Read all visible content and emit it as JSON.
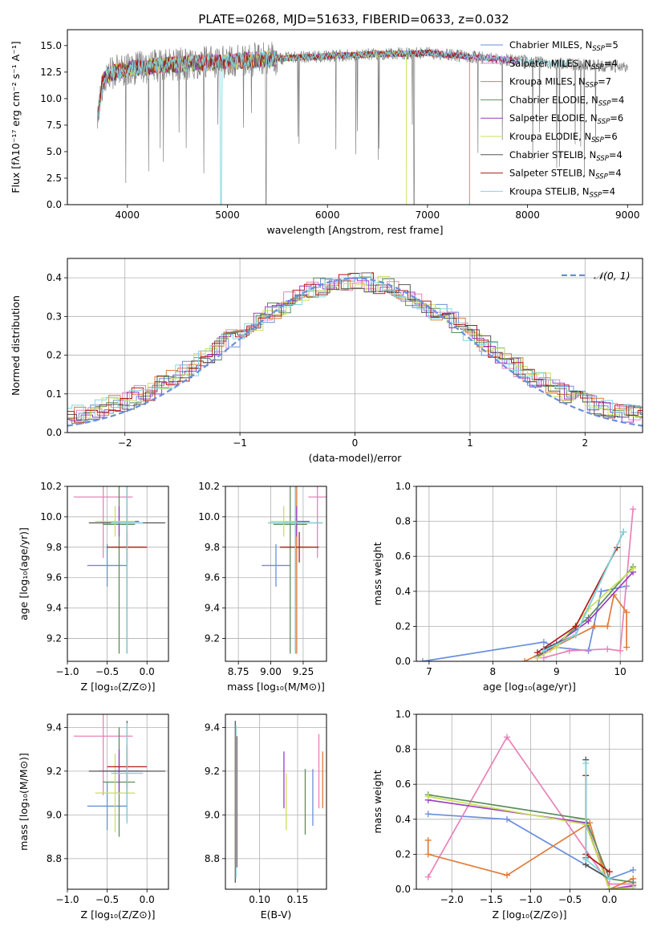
{
  "figure": {
    "title": "PLATE=0268, MJD=51633, FIBERID=0633, z=0.032"
  },
  "colors": {
    "chabrier_miles": "#6a8fdb",
    "salpeter_miles": "#e783b9",
    "kroupa_miles": "#e07b39",
    "chabrier_elodie": "#5b8e5b",
    "salpeter_elodie": "#9b3bc4",
    "kroupa_elodie": "#c9e05a",
    "chabrier_stelib": "#555555",
    "salpeter_stelib": "#b01b1b",
    "kroupa_stelib": "#7fd7df",
    "normal_curve": "#6a8fdb"
  },
  "chart_data": [
    {
      "id": "spectrum",
      "type": "line",
      "xlabel": "wavelength [Angstrom, rest frame]",
      "ylabel": "Flux [fλ10⁻¹⁷ erg cm⁻² s⁻¹ A⁻¹]",
      "xlim": [
        3400,
        9150
      ],
      "ylim": [
        0,
        16.5
      ],
      "xticks": [
        "4000",
        "5000",
        "6000",
        "7000",
        "8000",
        "9000"
      ],
      "yticks": [
        "0.0",
        "2.5",
        "5.0",
        "7.5",
        "10.0",
        "12.5",
        "15.0"
      ],
      "legend_position": "top-right",
      "series": [
        {
          "key": "chabrier_miles",
          "name": "Chabrier MILES, N_SSP=5",
          "label_main": "Chabrier MILES, N",
          "label_sub": "SSP",
          "label_tail": "=5"
        },
        {
          "key": "salpeter_miles",
          "name": "Salpeter MILES, N_SSP=4",
          "label_main": "Salpeter MILES, N",
          "label_sub": "SSP",
          "label_tail": "=4"
        },
        {
          "key": "kroupa_miles",
          "name": "Kroupa MILES, N_SSP=7",
          "label_main": "Kroupa MILES, N",
          "label_sub": "SSP",
          "label_tail": "=7"
        },
        {
          "key": "chabrier_elodie",
          "name": "Chabrier ELODIE, N_SSP=4",
          "label_main": "Chabrier ELODIE, N",
          "label_sub": "SSP",
          "label_tail": "=4"
        },
        {
          "key": "salpeter_elodie",
          "name": "Salpeter ELODIE, N_SSP=6",
          "label_main": "Salpeter ELODIE, N",
          "label_sub": "SSP",
          "label_tail": "=6"
        },
        {
          "key": "kroupa_elodie",
          "name": "Kroupa ELODIE, N_SSP=6",
          "label_main": "Kroupa ELODIE, N",
          "label_sub": "SSP",
          "label_tail": "=6"
        },
        {
          "key": "chabrier_stelib",
          "name": "Chabrier STELIB, N_SSP=4",
          "label_main": "Chabrier STELIB, N",
          "label_sub": "SSP",
          "label_tail": "=4"
        },
        {
          "key": "salpeter_stelib",
          "name": "Salpeter STELIB, N_SSP=4",
          "label_main": "Salpeter STELIB, N",
          "label_sub": "SSP",
          "label_tail": "=4"
        },
        {
          "key": "kroupa_stelib",
          "name": "Kroupa STELIB, N_SSP=4",
          "label_main": "Kroupa STELIB, N",
          "label_sub": "SSP",
          "label_tail": "=4"
        }
      ],
      "continuum": [
        [
          3700,
          8.0
        ],
        [
          3750,
          11.5
        ],
        [
          3800,
          12.2
        ],
        [
          3900,
          12.6
        ],
        [
          4000,
          12.8
        ],
        [
          4300,
          13.1
        ],
        [
          4600,
          13.3
        ],
        [
          5000,
          13.5
        ],
        [
          5500,
          13.8
        ],
        [
          6000,
          14.0
        ],
        [
          6500,
          14.2
        ],
        [
          7000,
          14.3
        ],
        [
          7500,
          13.9
        ],
        [
          8000,
          13.5
        ],
        [
          8500,
          13.2
        ],
        [
          9000,
          13.0
        ]
      ],
      "model_start": 3700,
      "data_end": 9000
    },
    {
      "id": "residuals",
      "type": "histogram",
      "xlabel": "(data-model)/error",
      "ylabel": "Normed distribution",
      "xlim": [
        -2.5,
        2.5
      ],
      "ylim": [
        0,
        0.45
      ],
      "xticks": [
        "-2",
        "-1",
        "0",
        "1",
        "2"
      ],
      "yticks": [
        "0.0",
        "0.1",
        "0.2",
        "0.3",
        "0.4"
      ],
      "grid": true,
      "bin_width": 0.1,
      "curve_label": "𝒩(0, 1)",
      "legend_position": "top-right"
    },
    {
      "id": "age_vs_Z",
      "type": "scatter",
      "xlabel": "Z [log₁₀(Z/Z⊙)]",
      "ylabel": "age  [log₁₀(age/yr)]",
      "xlim": [
        -1.0,
        0.27
      ],
      "ylim": [
        9.05,
        10.2
      ],
      "xticks": [
        "-1.0",
        "-0.5",
        "0.0"
      ],
      "yticks": [
        "9.2",
        "9.4",
        "9.6",
        "9.8",
        "10.0",
        "10.2"
      ],
      "grid": true,
      "points": [
        {
          "key": "chabrier_miles",
          "x": -0.5,
          "xerr": 0.25,
          "y": 9.68,
          "yerr": 0.14
        },
        {
          "key": "salpeter_miles",
          "x": -0.55,
          "xerr": 0.37,
          "y": 10.13,
          "yerr": 0.4
        },
        {
          "key": "kroupa_miles",
          "x": -0.25,
          "xerr": 0.2,
          "y": 9.8,
          "yerr": 0.7
        },
        {
          "key": "chabrier_elodie",
          "x": -0.35,
          "xerr": 0.2,
          "y": 9.95,
          "yerr": 0.85
        },
        {
          "key": "salpeter_elodie",
          "x": -0.35,
          "xerr": 0.25,
          "y": 9.97,
          "yerr": 0.1
        },
        {
          "key": "kroupa_elodie",
          "x": -0.4,
          "xerr": 0.25,
          "y": 9.97,
          "yerr": 0.1
        },
        {
          "key": "chabrier_stelib",
          "x": -0.25,
          "xerr": 0.48,
          "y": 9.96,
          "yerr": 0.86
        },
        {
          "key": "salpeter_stelib",
          "x": -0.25,
          "xerr": 0.25,
          "y": 9.8,
          "yerr": 0.1
        },
        {
          "key": "kroupa_stelib",
          "x": -0.25,
          "xerr": 0.2,
          "y": 9.96,
          "yerr": 0.86
        }
      ]
    },
    {
      "id": "age_vs_mass",
      "type": "scatter",
      "xlabel": "mass [log₁₀(M/M⊙)]",
      "ylabel": "",
      "xlim": [
        8.65,
        9.43
      ],
      "ylim": [
        9.05,
        10.2
      ],
      "xticks": [
        "8.75",
        "9.00",
        "9.25"
      ],
      "yticks": [
        "9.2",
        "9.4",
        "9.6",
        "9.8",
        "10.0",
        "10.2"
      ],
      "grid": true,
      "points": [
        {
          "key": "chabrier_miles",
          "x": 9.04,
          "xerr": 0.11,
          "y": 9.68,
          "yerr": 0.14
        },
        {
          "key": "salpeter_miles",
          "x": 9.36,
          "xerr": 0.07,
          "y": 10.13,
          "yerr": 0.4
        },
        {
          "key": "kroupa_miles",
          "x": 9.2,
          "xerr": 0.1,
          "y": 9.8,
          "yerr": 0.7
        },
        {
          "key": "chabrier_elodie",
          "x": 9.15,
          "xerr": 0.13,
          "y": 9.95,
          "yerr": 0.85
        },
        {
          "key": "salpeter_elodie",
          "x": 9.2,
          "xerr": 0.1,
          "y": 9.97,
          "yerr": 0.1
        },
        {
          "key": "kroupa_elodie",
          "x": 9.1,
          "xerr": 0.1,
          "y": 9.97,
          "yerr": 0.1
        },
        {
          "key": "chabrier_stelib",
          "x": 9.19,
          "xerr": 0.21,
          "y": 9.96,
          "yerr": 0.86
        },
        {
          "key": "salpeter_stelib",
          "x": 9.22,
          "xerr": 0.15,
          "y": 9.8,
          "yerr": 0.1
        },
        {
          "key": "kroupa_stelib",
          "x": 9.19,
          "xerr": 0.21,
          "y": 9.96,
          "yerr": 0.86
        }
      ]
    },
    {
      "id": "weight_vs_age",
      "type": "line",
      "xlabel": "age  [log₁₀(age/yr)]",
      "ylabel": "mass weight",
      "xlim": [
        6.8,
        10.35
      ],
      "ylim": [
        0,
        1.0
      ],
      "xticks": [
        "7",
        "8",
        "9",
        "10"
      ],
      "yticks": [
        "0.0",
        "0.2",
        "0.4",
        "0.6",
        "0.8",
        "1.0"
      ],
      "grid": true,
      "series": [
        {
          "key": "chabrier_miles",
          "points": [
            [
              6.9,
              0.0
            ],
            [
              8.8,
              0.11
            ],
            [
              9.0,
              0.08
            ],
            [
              9.5,
              0.06
            ],
            [
              9.7,
              0.4
            ],
            [
              10.1,
              0.43
            ]
          ]
        },
        {
          "key": "salpeter_miles",
          "points": [
            [
              8.8,
              0.02
            ],
            [
              9.2,
              0.06
            ],
            [
              9.8,
              0.07
            ],
            [
              10.0,
              0.06
            ],
            [
              10.2,
              0.87
            ]
          ]
        },
        {
          "key": "kroupa_miles",
          "points": [
            [
              8.5,
              0.0
            ],
            [
              8.9,
              0.07
            ],
            [
              9.6,
              0.2
            ],
            [
              9.8,
              0.2
            ],
            [
              9.9,
              0.38
            ],
            [
              10.1,
              0.28
            ],
            [
              10.1,
              0.08
            ]
          ]
        },
        {
          "key": "chabrier_elodie",
          "points": [
            [
              8.7,
              0.03
            ],
            [
              9.0,
              0.1
            ],
            [
              9.5,
              0.25
            ],
            [
              10.2,
              0.54
            ]
          ]
        },
        {
          "key": "salpeter_elodie",
          "points": [
            [
              8.7,
              0.02
            ],
            [
              9.0,
              0.1
            ],
            [
              9.5,
              0.23
            ],
            [
              10.2,
              0.51
            ]
          ]
        },
        {
          "key": "kroupa_elodie",
          "points": [
            [
              8.7,
              0.02
            ],
            [
              9.0,
              0.08
            ],
            [
              9.5,
              0.3
            ],
            [
              10.2,
              0.53
            ]
          ]
        },
        {
          "key": "chabrier_stelib",
          "points": [
            [
              8.8,
              0.07
            ],
            [
              9.3,
              0.15
            ],
            [
              10.05,
              0.74
            ]
          ]
        },
        {
          "key": "salpeter_stelib",
          "points": [
            [
              8.7,
              0.05
            ],
            [
              9.3,
              0.2
            ],
            [
              9.95,
              0.65
            ]
          ]
        },
        {
          "key": "kroupa_stelib",
          "points": [
            [
              8.8,
              0.06
            ],
            [
              9.3,
              0.15
            ],
            [
              10.05,
              0.74
            ]
          ]
        }
      ]
    },
    {
      "id": "mass_vs_Z",
      "type": "scatter",
      "xlabel": "Z [log₁₀(Z/Z⊙)]",
      "ylabel": "mass [log₁₀(M/M⊙)]",
      "xlim": [
        -1.0,
        0.27
      ],
      "ylim": [
        8.66,
        9.46
      ],
      "xticks": [
        "-1.0",
        "-0.5",
        "0.0"
      ],
      "yticks": [
        "8.8",
        "9.0",
        "9.2",
        "9.4"
      ],
      "grid": true,
      "points": [
        {
          "key": "chabrier_miles",
          "x": -0.5,
          "xerr": 0.25,
          "y": 9.04,
          "yerr": 0.11
        },
        {
          "key": "salpeter_miles",
          "x": -0.55,
          "xerr": 0.37,
          "y": 9.36,
          "yerr": 0.27
        },
        {
          "key": "kroupa_miles",
          "x": -0.25,
          "xerr": 0.2,
          "y": 9.2,
          "yerr": 0.1
        },
        {
          "key": "chabrier_elodie",
          "x": -0.35,
          "xerr": 0.2,
          "y": 9.15,
          "yerr": 0.25
        },
        {
          "key": "salpeter_elodie",
          "x": -0.35,
          "xerr": 0.25,
          "y": 9.2,
          "yerr": 0.1
        },
        {
          "key": "kroupa_elodie",
          "x": -0.4,
          "xerr": 0.25,
          "y": 9.1,
          "yerr": 0.18
        },
        {
          "key": "chabrier_stelib",
          "x": -0.25,
          "xerr": 0.48,
          "y": 9.2,
          "yerr": 0.23
        },
        {
          "key": "salpeter_stelib",
          "x": -0.25,
          "xerr": 0.25,
          "y": 9.22,
          "yerr": 0.1
        },
        {
          "key": "kroupa_stelib",
          "x": -0.25,
          "xerr": 0.2,
          "y": 9.19,
          "yerr": 0.23
        }
      ]
    },
    {
      "id": "mass_vs_ebv",
      "type": "scatter",
      "xlabel": "E(B-V)",
      "ylabel": "",
      "xlim": [
        0.055,
        0.188
      ],
      "ylim": [
        8.66,
        9.46
      ],
      "xticks": [
        "0.10",
        "0.15"
      ],
      "yticks": [
        "8.8",
        "9.0",
        "9.2",
        "9.4"
      ],
      "grid": true,
      "points": [
        {
          "key": "chabrier_miles",
          "x": 0.17,
          "xerr": 0,
          "y": 9.08,
          "yerr": 0.13
        },
        {
          "key": "salpeter_miles",
          "x": 0.178,
          "xerr": 0,
          "y": 9.2,
          "yerr": 0.17
        },
        {
          "key": "kroupa_miles",
          "x": 0.183,
          "xerr": 0,
          "y": 9.16,
          "yerr": 0.13
        },
        {
          "key": "chabrier_elodie",
          "x": 0.16,
          "xerr": 0,
          "y": 9.06,
          "yerr": 0.15
        },
        {
          "key": "salpeter_elodie",
          "x": 0.132,
          "xerr": 0,
          "y": 9.16,
          "yerr": 0.13
        },
        {
          "key": "kroupa_elodie",
          "x": 0.135,
          "xerr": 0,
          "y": 9.06,
          "yerr": 0.13
        },
        {
          "key": "chabrier_stelib",
          "x": 0.068,
          "xerr": 0,
          "y": 9.06,
          "yerr": 0.37
        },
        {
          "key": "salpeter_stelib",
          "x": 0.07,
          "xerr": 0,
          "y": 9.06,
          "yerr": 0.3
        },
        {
          "key": "kroupa_stelib",
          "x": 0.069,
          "xerr": 0,
          "y": 9.06,
          "yerr": 0.35
        }
      ]
    },
    {
      "id": "weight_vs_Z",
      "type": "line",
      "xlabel": "Z [log₁₀(Z/Z⊙)]",
      "ylabel": "mass weight",
      "xlim": [
        -2.45,
        0.42
      ],
      "ylim": [
        0,
        1.0
      ],
      "xticks": [
        "-2.0",
        "-1.5",
        "-1.0",
        "-0.5",
        "0.0"
      ],
      "yticks": [
        "0.0",
        "0.2",
        "0.4",
        "0.6",
        "0.8",
        "1.0"
      ],
      "grid": true,
      "series": [
        {
          "key": "chabrier_miles",
          "points": [
            [
              -2.3,
              0.43
            ],
            [
              -1.3,
              0.4
            ],
            [
              0.0,
              0.06
            ],
            [
              0.3,
              0.11
            ]
          ]
        },
        {
          "key": "salpeter_miles",
          "points": [
            [
              -2.3,
              0.07
            ],
            [
              -1.3,
              0.87
            ],
            [
              0.0,
              0.03
            ],
            [
              0.3,
              0.03
            ]
          ]
        },
        {
          "key": "kroupa_miles",
          "points": [
            [
              -2.3,
              0.28
            ],
            [
              -2.3,
              0.2
            ],
            [
              -1.3,
              0.08
            ],
            [
              -0.25,
              0.38
            ],
            [
              0.0,
              0.0
            ],
            [
              0.3,
              0.06
            ]
          ]
        },
        {
          "key": "chabrier_elodie",
          "points": [
            [
              -2.3,
              0.54
            ],
            [
              -0.3,
              0.4
            ],
            [
              0.0,
              0.06
            ],
            [
              0.3,
              0.04
            ]
          ]
        },
        {
          "key": "salpeter_elodie",
          "points": [
            [
              -2.3,
              0.51
            ],
            [
              -0.3,
              0.38
            ],
            [
              0.0,
              0.0
            ],
            [
              0.3,
              0.02
            ]
          ]
        },
        {
          "key": "kroupa_elodie",
          "points": [
            [
              -2.3,
              0.53
            ],
            [
              -0.3,
              0.37
            ],
            [
              0.0,
              0.0
            ],
            [
              0.3,
              0.01
            ]
          ]
        },
        {
          "key": "chabrier_stelib",
          "points": [
            [
              -0.3,
              0.74
            ],
            [
              -0.3,
              0.18
            ],
            [
              -0.3,
              0.14
            ],
            [
              0.0,
              0.06
            ]
          ]
        },
        {
          "key": "salpeter_stelib",
          "points": [
            [
              -0.3,
              0.65
            ],
            [
              -0.3,
              0.2
            ],
            [
              0.0,
              0.1
            ]
          ]
        },
        {
          "key": "kroupa_stelib",
          "points": [
            [
              -0.3,
              0.72
            ],
            [
              -0.3,
              0.17
            ],
            [
              0.0,
              0.06
            ]
          ]
        }
      ]
    }
  ]
}
